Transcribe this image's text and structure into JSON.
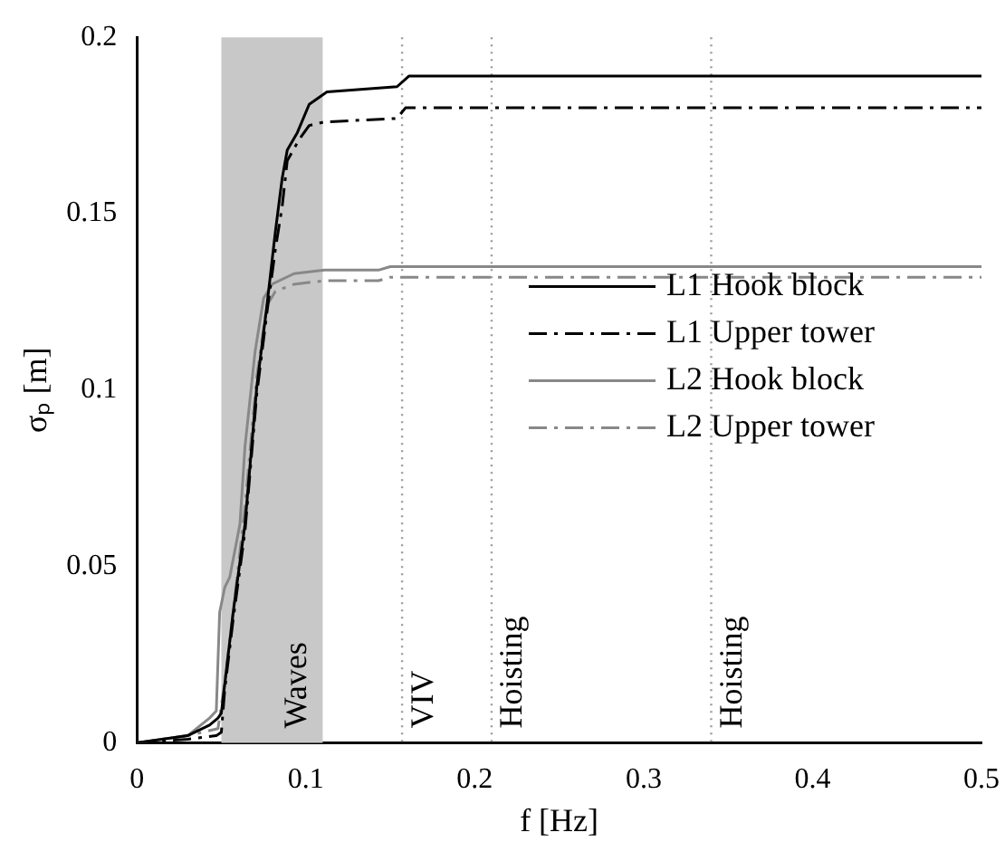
{
  "chart_data": {
    "type": "line",
    "xlabel": "f [Hz]",
    "ylabel": "σₚ [m]",
    "xlim": [
      0,
      0.5
    ],
    "xticks": [
      0,
      0.1,
      0.2,
      0.3,
      0.4,
      0.5
    ],
    "ylim": [
      0,
      0.2
    ],
    "yticks": [
      0,
      0.05,
      0.1,
      0.15,
      0.2
    ],
    "grid": false,
    "legend": "right",
    "marker": "none",
    "series": [
      {
        "name": "L1 Hook block",
        "color": "#000000",
        "line_style": "solid",
        "x": [
          0,
          0.03,
          0.043,
          0.048,
          0.05,
          0.057,
          0.064,
          0.071,
          0.077,
          0.082,
          0.086,
          0.089,
          0.095,
          0.102,
          0.1125,
          0.154,
          0.161,
          0.5
        ],
        "values": [
          0,
          0.002,
          0.005,
          0.007,
          0.0084,
          0.037,
          0.062,
          0.101,
          0.124,
          0.145,
          0.16,
          0.168,
          0.173,
          0.181,
          0.1845,
          0.186,
          0.189,
          0.189
        ]
      },
      {
        "name": "L1 Upper tower",
        "color": "#000000",
        "line_style": "dashed",
        "x": [
          0,
          0.03,
          0.047,
          0.05,
          0.052,
          0.057,
          0.064,
          0.071,
          0.077,
          0.082,
          0.086,
          0.089,
          0.096,
          0.102,
          0.111,
          0.154,
          0.159,
          0.5
        ],
        "values": [
          0,
          0.001,
          0.002,
          0.003,
          0.015,
          0.035,
          0.06,
          0.099,
          0.122,
          0.14,
          0.152,
          0.165,
          0.171,
          0.175,
          0.176,
          0.177,
          0.18,
          0.18
        ]
      },
      {
        "name": "L2 Hook block",
        "color": "#888888",
        "line_style": "solid",
        "x": [
          0,
          0.03,
          0.043,
          0.047,
          0.049,
          0.052,
          0.055,
          0.061,
          0.064,
          0.07,
          0.075,
          0.08,
          0.093,
          0.111,
          0.143,
          0.15,
          0.5
        ],
        "values": [
          0,
          0.002,
          0.007,
          0.009,
          0.037,
          0.044,
          0.047,
          0.062,
          0.084,
          0.111,
          0.126,
          0.13,
          0.133,
          0.134,
          0.134,
          0.135,
          0.135
        ]
      },
      {
        "name": "L2 Upper tower",
        "color": "#888888",
        "line_style": "dashed",
        "x": [
          0,
          0.03,
          0.048,
          0.052,
          0.057,
          0.064,
          0.071,
          0.077,
          0.082,
          0.093,
          0.111,
          0.143,
          0.15,
          0.5
        ],
        "values": [
          0,
          0.002,
          0.004,
          0.017,
          0.037,
          0.067,
          0.104,
          0.124,
          0.128,
          0.13,
          0.131,
          0.131,
          0.132,
          0.132
        ]
      }
    ],
    "bands": [
      {
        "axis": "x",
        "from": 0.05,
        "to": 0.11,
        "label": "Waves",
        "color": "#c8c8c8"
      }
    ],
    "ref_lines": [
      {
        "axis": "x",
        "value": 0.157,
        "label": "VIV",
        "color": "#999999",
        "line_style": "dotted"
      },
      {
        "axis": "x",
        "value": 0.21,
        "label": "Hoisting",
        "color": "#999999",
        "line_style": "dotted"
      },
      {
        "axis": "x",
        "value": 0.34,
        "label": "Hoisting",
        "color": "#999999",
        "line_style": "dotted"
      }
    ]
  }
}
